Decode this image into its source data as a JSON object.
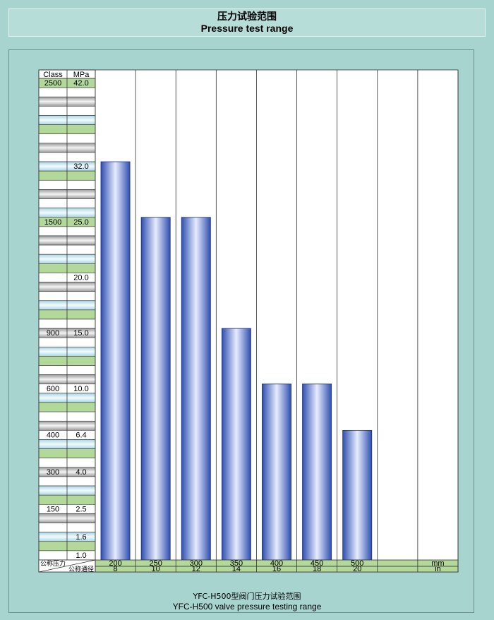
{
  "title_cn": "压力试验范围",
  "title_en": "Pressure test range",
  "caption_cn": "YFC-H500型阀门压力试验范围",
  "caption_en": "YFC-H500 valve pressure testing range",
  "colors": {
    "background": "#a8d4cf",
    "bar_dark": "#2f4fb0",
    "bar_light": "#e6ecff",
    "green_cell": "#b3d99a",
    "blue_cell": "#c7e6ef",
    "gray_cell": "#b8b8b8"
  },
  "chart_data": {
    "type": "bar",
    "header_class": "Class",
    "header_mpa": "MPa",
    "row_label_pressure": "公称压力",
    "row_label_size": "公称通径",
    "unit_mm": "mm",
    "unit_in": "in",
    "y_labels": [
      {
        "class": "2500",
        "mpa": "42.0",
        "value": 42.0
      },
      {
        "class": "",
        "mpa": "32.0",
        "value": 32.0
      },
      {
        "class": "1500",
        "mpa": "25.0",
        "value": 25.0
      },
      {
        "class": "",
        "mpa": "20.0",
        "value": 20.0
      },
      {
        "class": "900",
        "mpa": "15.0",
        "value": 15.0
      },
      {
        "class": "600",
        "mpa": "10.0",
        "value": 10.0
      },
      {
        "class": "400",
        "mpa": "6.4",
        "value": 6.4
      },
      {
        "class": "300",
        "mpa": "4.0",
        "value": 4.0
      },
      {
        "class": "150",
        "mpa": "2.5",
        "value": 2.5
      },
      {
        "class": "",
        "mpa": "1.6",
        "value": 1.6
      },
      {
        "class": "",
        "mpa": "1.0",
        "value": 1.0
      }
    ],
    "categories_mm": [
      "200",
      "250",
      "300",
      "350",
      "400",
      "450",
      "500",
      "",
      ""
    ],
    "categories_in": [
      "8",
      "10",
      "12",
      "14",
      "16",
      "18",
      "20",
      "",
      ""
    ],
    "values": [
      32.0,
      25.0,
      25.0,
      15.0,
      10.0,
      10.0,
      6.4,
      null,
      null
    ],
    "ylabel": "MPa"
  }
}
